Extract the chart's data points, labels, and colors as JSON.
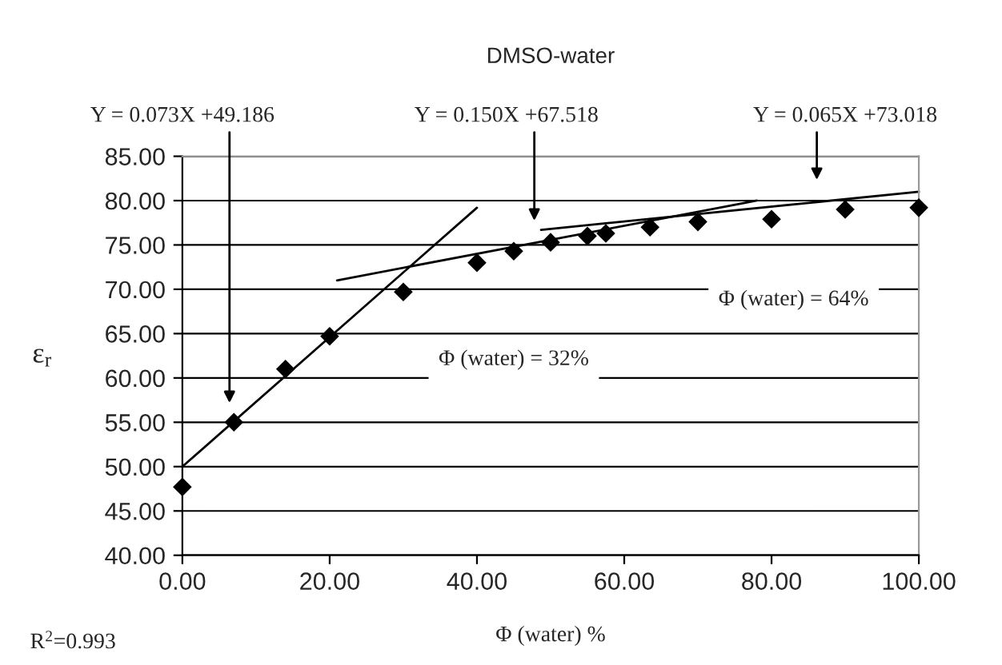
{
  "chart_data": {
    "type": "scatter",
    "title": "DMSO-water",
    "xlabel": "Φ (water) %",
    "ylabel": "ε$_{r}$",
    "xlim": [
      0,
      100
    ],
    "xticks": [
      {
        "value": 0,
        "label": "0.00"
      },
      {
        "value": 20,
        "label": "20.00"
      },
      {
        "value": 40,
        "label": "40.00"
      },
      {
        "value": 60,
        "label": "60.00"
      },
      {
        "value": 80,
        "label": "80.00"
      },
      {
        "value": 100,
        "label": "100.00"
      }
    ],
    "ylim": [
      40,
      85
    ],
    "yticks": [
      {
        "value": 40,
        "label": "40.00"
      },
      {
        "value": 45,
        "label": "45.00"
      },
      {
        "value": 50,
        "label": "50.00"
      },
      {
        "value": 55,
        "label": "55.00"
      },
      {
        "value": 60,
        "label": "60.00"
      },
      {
        "value": 65,
        "label": "65.00"
      },
      {
        "value": 70,
        "label": "70.00"
      },
      {
        "value": 75,
        "label": "75.00"
      },
      {
        "value": 80,
        "label": "80.00"
      },
      {
        "value": 85,
        "label": "85.00"
      }
    ],
    "grid": "y",
    "legend": false,
    "series": [
      {
        "color": "#000000",
        "marker": "diamond",
        "x": [
          0,
          7,
          14,
          20,
          30,
          40,
          45,
          50,
          55,
          57.5,
          63.5,
          70,
          80,
          90,
          100
        ],
        "values": [
          47.7,
          55,
          61,
          64.7,
          69.7,
          73,
          74.3,
          75.3,
          76,
          76.3,
          77,
          77.6,
          77.9,
          79,
          79.2
        ]
      },
      {
        "type": "line",
        "color": "#000000",
        "x": [
          0,
          40
        ],
        "values": [
          50,
          79.2
        ]
      },
      {
        "type": "line",
        "color": "#000000",
        "x": [
          21,
          78
        ],
        "values": [
          71,
          80
        ]
      },
      {
        "type": "line",
        "color": "#000000",
        "x": [
          48.7,
          100
        ],
        "values": [
          76.7,
          81
        ]
      }
    ],
    "annotations": [
      "Y = 0.073X +49.186",
      "Y = 0.150X +67.518",
      "Y = 0.065X +73.018",
      "Φ (water) = 32%",
      "Φ (water) = 64%",
      "R$^{2}$=0.993"
    ]
  }
}
